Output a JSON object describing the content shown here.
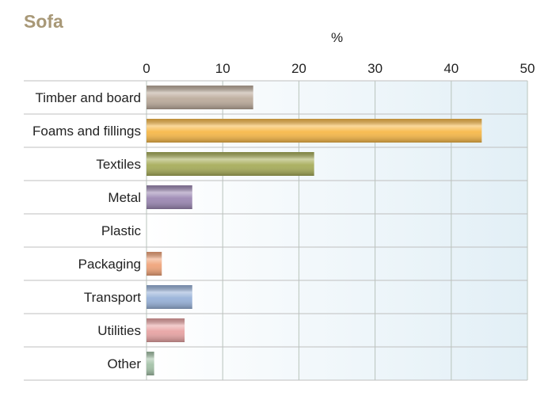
{
  "chart_data": {
    "type": "bar",
    "orientation": "horizontal",
    "title": "Sofa",
    "xlabel": "%",
    "ylabel": "",
    "xlim": [
      0,
      50
    ],
    "ticks": [
      0,
      10,
      20,
      30,
      40,
      50
    ],
    "categories": [
      "Timber and board",
      "Foams and fillings",
      "Textiles",
      "Metal",
      "Plastic",
      "Packaging",
      "Transport",
      "Utilities",
      "Other"
    ],
    "values": [
      14,
      44,
      22,
      6,
      0,
      2,
      6,
      5,
      1
    ],
    "grid": true,
    "colors": {
      "title": "#a89877",
      "bars": [
        "#bcab9c",
        "#f7b94a",
        "#a7ad5a",
        "#9c88b3",
        "#cccccc",
        "#f0a47a",
        "#98b2d9",
        "#e8a4a4",
        "#a4c2a8"
      ],
      "plot_bg_left": "#ffffff",
      "plot_bg_right": "#e2eff6",
      "gridline": "#b8c4bc",
      "separator": "#bfbfbf"
    }
  }
}
